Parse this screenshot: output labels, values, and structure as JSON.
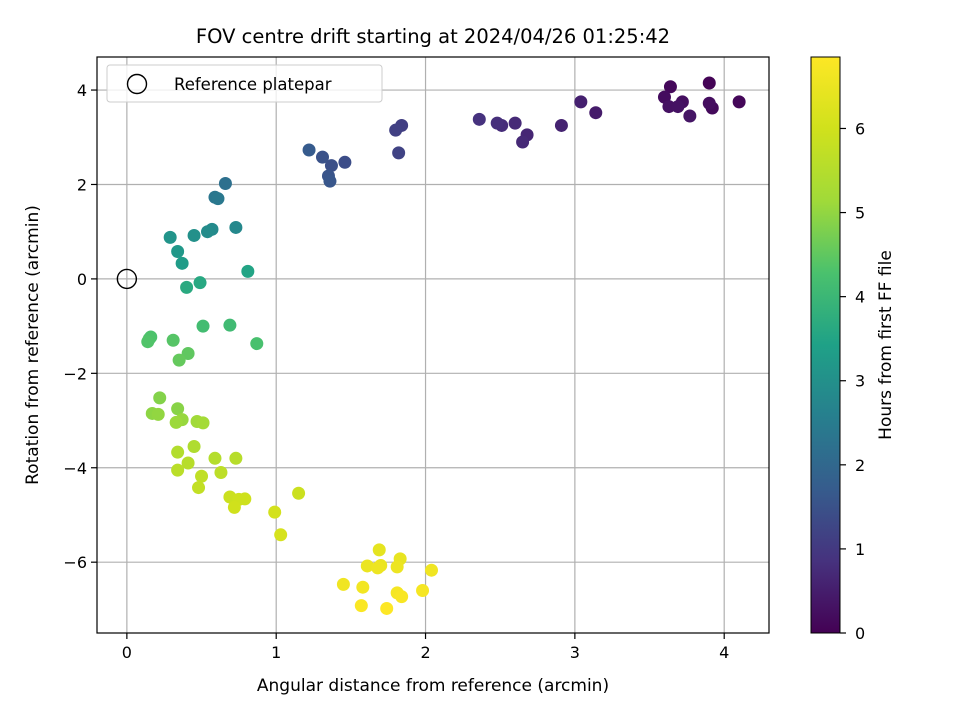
{
  "chart_data": {
    "type": "scatter",
    "title": "FOV centre drift starting at 2024/04/26 01:25:42",
    "xlabel": "Angular distance from reference (arcmin)",
    "ylabel": "Rotation from reference (arcmin)",
    "colorbar_label": "Hours from first FF file",
    "xlim": [
      -0.2,
      4.3
    ],
    "ylim": [
      -7.5,
      4.7
    ],
    "x_ticks": [
      0,
      1,
      2,
      3,
      4
    ],
    "y_ticks": [
      -6,
      -4,
      -2,
      0,
      2,
      4
    ],
    "colorbar_range": [
      0,
      6.85
    ],
    "colorbar_ticks": [
      0,
      1,
      2,
      3,
      4,
      5,
      6
    ],
    "colormap": "viridis",
    "grid": true,
    "legend": {
      "position": "top-left",
      "entries": [
        "Reference platepar"
      ]
    },
    "reference": {
      "x": 0,
      "y": 0
    },
    "points": [
      {
        "x": 3.9,
        "y": 4.15,
        "h": 0.05
      },
      {
        "x": 4.1,
        "y": 3.75,
        "h": 0.1
      },
      {
        "x": 3.64,
        "y": 4.07,
        "h": 0.12
      },
      {
        "x": 3.92,
        "y": 3.62,
        "h": 0.15
      },
      {
        "x": 3.6,
        "y": 3.85,
        "h": 0.2
      },
      {
        "x": 3.9,
        "y": 3.72,
        "h": 0.22
      },
      {
        "x": 3.72,
        "y": 3.75,
        "h": 0.25
      },
      {
        "x": 3.63,
        "y": 3.65,
        "h": 0.28
      },
      {
        "x": 3.69,
        "y": 3.65,
        "h": 0.3
      },
      {
        "x": 3.77,
        "y": 3.45,
        "h": 0.35
      },
      {
        "x": 3.14,
        "y": 3.52,
        "h": 0.45
      },
      {
        "x": 3.04,
        "y": 3.75,
        "h": 0.55
      },
      {
        "x": 2.91,
        "y": 3.25,
        "h": 0.6
      },
      {
        "x": 2.68,
        "y": 3.05,
        "h": 0.65
      },
      {
        "x": 2.65,
        "y": 2.9,
        "h": 0.7
      },
      {
        "x": 2.6,
        "y": 3.3,
        "h": 0.72
      },
      {
        "x": 2.51,
        "y": 3.25,
        "h": 0.75
      },
      {
        "x": 2.48,
        "y": 3.3,
        "h": 0.8
      },
      {
        "x": 2.36,
        "y": 3.38,
        "h": 0.85
      },
      {
        "x": 1.84,
        "y": 3.25,
        "h": 1.1
      },
      {
        "x": 1.8,
        "y": 3.15,
        "h": 1.15
      },
      {
        "x": 1.82,
        "y": 2.67,
        "h": 1.2
      },
      {
        "x": 1.46,
        "y": 2.47,
        "h": 1.4
      },
      {
        "x": 1.37,
        "y": 2.4,
        "h": 1.45
      },
      {
        "x": 1.31,
        "y": 2.58,
        "h": 1.5
      },
      {
        "x": 1.35,
        "y": 2.18,
        "h": 1.55
      },
      {
        "x": 1.36,
        "y": 2.07,
        "h": 1.6
      },
      {
        "x": 1.22,
        "y": 2.73,
        "h": 1.7
      },
      {
        "x": 0.66,
        "y": 2.02,
        "h": 2.2
      },
      {
        "x": 0.59,
        "y": 1.73,
        "h": 2.35
      },
      {
        "x": 0.61,
        "y": 1.7,
        "h": 2.4
      },
      {
        "x": 0.73,
        "y": 1.09,
        "h": 2.8
      },
      {
        "x": 0.57,
        "y": 1.05,
        "h": 2.85
      },
      {
        "x": 0.54,
        "y": 1.0,
        "h": 2.9
      },
      {
        "x": 0.45,
        "y": 0.92,
        "h": 3.0
      },
      {
        "x": 0.29,
        "y": 0.88,
        "h": 3.1
      },
      {
        "x": 0.34,
        "y": 0.58,
        "h": 3.2
      },
      {
        "x": 0.37,
        "y": 0.33,
        "h": 3.3
      },
      {
        "x": 0.81,
        "y": 0.16,
        "h": 3.5
      },
      {
        "x": 0.49,
        "y": -0.08,
        "h": 3.6
      },
      {
        "x": 0.4,
        "y": -0.18,
        "h": 3.65
      },
      {
        "x": 0.69,
        "y": -0.98,
        "h": 4.1
      },
      {
        "x": 0.51,
        "y": -1.0,
        "h": 4.15
      },
      {
        "x": 0.87,
        "y": -1.37,
        "h": 4.25
      },
      {
        "x": 0.16,
        "y": -1.23,
        "h": 4.3
      },
      {
        "x": 0.15,
        "y": -1.27,
        "h": 4.32
      },
      {
        "x": 0.14,
        "y": -1.33,
        "h": 4.35
      },
      {
        "x": 0.31,
        "y": -1.3,
        "h": 4.4
      },
      {
        "x": 0.41,
        "y": -1.58,
        "h": 4.5
      },
      {
        "x": 0.35,
        "y": -1.72,
        "h": 4.55
      },
      {
        "x": 0.22,
        "y": -2.52,
        "h": 4.85
      },
      {
        "x": 0.34,
        "y": -2.75,
        "h": 4.9
      },
      {
        "x": 0.17,
        "y": -2.85,
        "h": 4.95
      },
      {
        "x": 0.21,
        "y": -2.87,
        "h": 5.0
      },
      {
        "x": 0.37,
        "y": -2.98,
        "h": 5.05
      },
      {
        "x": 0.33,
        "y": -3.04,
        "h": 5.1
      },
      {
        "x": 0.47,
        "y": -3.02,
        "h": 5.15
      },
      {
        "x": 0.51,
        "y": -3.05,
        "h": 5.2
      },
      {
        "x": 0.45,
        "y": -3.55,
        "h": 5.4
      },
      {
        "x": 0.34,
        "y": -3.67,
        "h": 5.45
      },
      {
        "x": 0.59,
        "y": -3.8,
        "h": 5.5
      },
      {
        "x": 0.73,
        "y": -3.8,
        "h": 5.55
      },
      {
        "x": 0.41,
        "y": -3.9,
        "h": 5.55
      },
      {
        "x": 0.34,
        "y": -4.05,
        "h": 5.6
      },
      {
        "x": 0.63,
        "y": -4.1,
        "h": 5.65
      },
      {
        "x": 0.5,
        "y": -4.18,
        "h": 5.7
      },
      {
        "x": 0.48,
        "y": -4.42,
        "h": 5.75
      },
      {
        "x": 1.15,
        "y": -4.54,
        "h": 5.9
      },
      {
        "x": 0.69,
        "y": -4.62,
        "h": 5.9
      },
      {
        "x": 0.79,
        "y": -4.66,
        "h": 5.95
      },
      {
        "x": 0.75,
        "y": -4.67,
        "h": 5.95
      },
      {
        "x": 0.72,
        "y": -4.84,
        "h": 6.0
      },
      {
        "x": 0.99,
        "y": -4.94,
        "h": 6.05
      },
      {
        "x": 1.03,
        "y": -5.42,
        "h": 6.1
      },
      {
        "x": 1.69,
        "y": -5.74,
        "h": 6.4
      },
      {
        "x": 1.83,
        "y": -5.93,
        "h": 6.45
      },
      {
        "x": 1.7,
        "y": -6.07,
        "h": 6.5
      },
      {
        "x": 1.61,
        "y": -6.08,
        "h": 6.5
      },
      {
        "x": 1.68,
        "y": -6.12,
        "h": 6.55
      },
      {
        "x": 1.81,
        "y": -6.1,
        "h": 6.55
      },
      {
        "x": 2.04,
        "y": -6.17,
        "h": 6.6
      },
      {
        "x": 1.45,
        "y": -6.47,
        "h": 6.6
      },
      {
        "x": 1.58,
        "y": -6.53,
        "h": 6.65
      },
      {
        "x": 1.98,
        "y": -6.6,
        "h": 6.7
      },
      {
        "x": 1.81,
        "y": -6.65,
        "h": 6.7
      },
      {
        "x": 1.84,
        "y": -6.73,
        "h": 6.75
      },
      {
        "x": 1.57,
        "y": -6.92,
        "h": 6.8
      },
      {
        "x": 1.74,
        "y": -6.98,
        "h": 6.85
      }
    ]
  }
}
